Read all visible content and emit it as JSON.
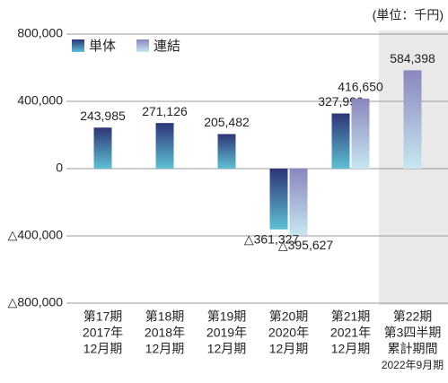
{
  "chart_data": {
    "type": "bar",
    "unit_note": "(単位：千円)",
    "categories": [
      [
        "第17期",
        "2017年",
        "12月期"
      ],
      [
        "第18期",
        "2018年",
        "12月期"
      ],
      [
        "第19期",
        "2019年",
        "12月期"
      ],
      [
        "第20期",
        "2020年",
        "12月期"
      ],
      [
        "第21期",
        "2021年",
        "12月期"
      ],
      [
        "第22期",
        "第3四半期",
        "累計期間",
        "2022年9月期"
      ]
    ],
    "series": [
      {
        "name": "単体",
        "color": [
          "#2d3577",
          "#5ec0d4"
        ],
        "values": [
          243985,
          271126,
          205482,
          -361327,
          327990,
          null
        ],
        "value_labels": [
          "243,985",
          "271,126",
          "205,482",
          "△361,327",
          "327,990",
          null
        ]
      },
      {
        "name": "連結",
        "color": [
          "#8a86bd",
          "#c7e7f0"
        ],
        "values": [
          null,
          null,
          null,
          -395627,
          416650,
          584398
        ],
        "value_labels": [
          null,
          null,
          null,
          "△395,627",
          "416,650",
          "584,398"
        ]
      }
    ],
    "ylim": [
      -800000,
      800000
    ],
    "yticks": [
      {
        "value": 800000,
        "label": "800,000"
      },
      {
        "value": 400000,
        "label": "400,000"
      },
      0,
      {
        "value": -400000,
        "label": "△400,000"
      },
      {
        "value": -800000,
        "label": "△800,000"
      }
    ],
    "grid": true,
    "legend": "top-left",
    "highlight_category": 5
  }
}
